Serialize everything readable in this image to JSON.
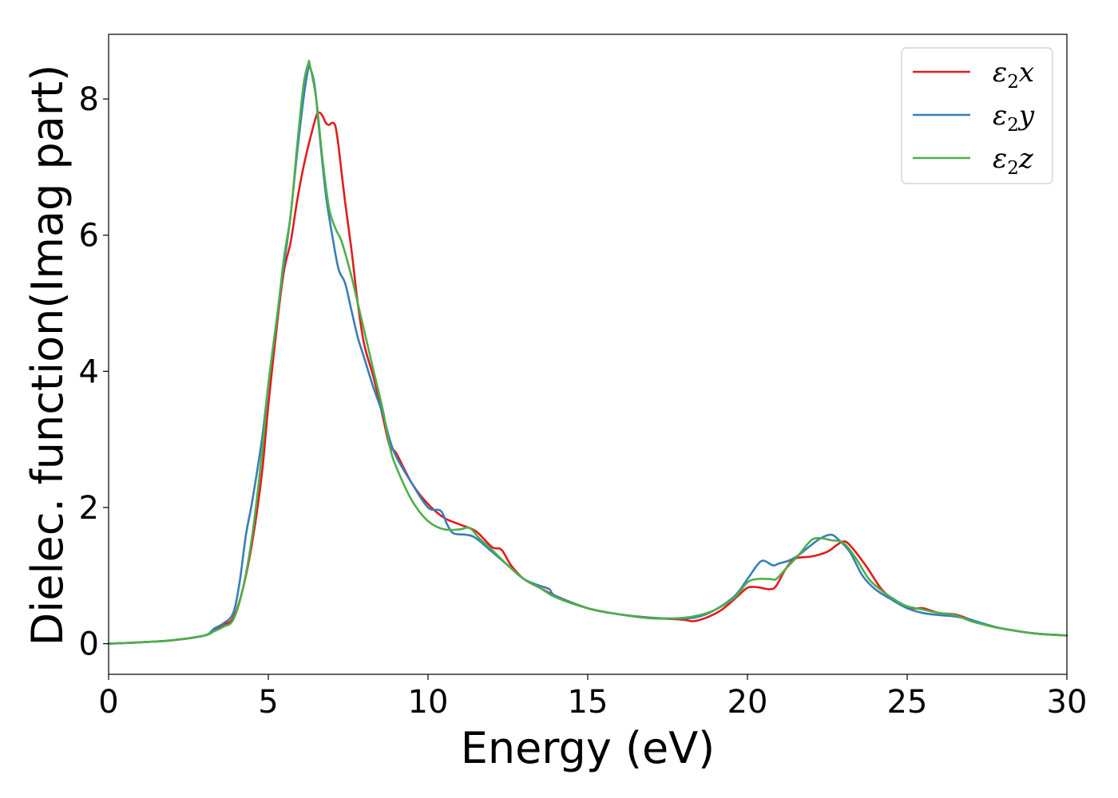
{
  "chart_data": {
    "type": "line",
    "title": "",
    "xlabel": "Energy (eV)",
    "ylabel": "Dielec. function(Imag part)",
    "xlim": [
      0,
      30
    ],
    "ylim": [
      -0.45,
      8.95
    ],
    "xticks": [
      0,
      5,
      10,
      15,
      20,
      25,
      30
    ],
    "yticks": [
      0,
      2,
      4,
      6,
      8
    ],
    "grid": false,
    "legend_position": "top-right",
    "series": [
      {
        "name": "ε2x",
        "legend_symbol": "ε",
        "legend_sub": "2",
        "legend_var": "x",
        "color": "#e41a1c",
        "points": [
          [
            0,
            0.0
          ],
          [
            1,
            0.02
          ],
          [
            2,
            0.05
          ],
          [
            3,
            0.12
          ],
          [
            3.3,
            0.2
          ],
          [
            3.6,
            0.28
          ],
          [
            3.9,
            0.38
          ],
          [
            4.2,
            0.8
          ],
          [
            4.5,
            1.5
          ],
          [
            4.8,
            2.5
          ],
          [
            5.0,
            3.5
          ],
          [
            5.3,
            4.8
          ],
          [
            5.5,
            5.5
          ],
          [
            5.7,
            5.9
          ],
          [
            5.9,
            6.5
          ],
          [
            6.1,
            7.0
          ],
          [
            6.3,
            7.4
          ],
          [
            6.5,
            7.75
          ],
          [
            6.6,
            7.8
          ],
          [
            6.7,
            7.75
          ],
          [
            6.8,
            7.65
          ],
          [
            6.9,
            7.62
          ],
          [
            7.0,
            7.65
          ],
          [
            7.1,
            7.6
          ],
          [
            7.2,
            7.3
          ],
          [
            7.4,
            6.5
          ],
          [
            7.6,
            5.8
          ],
          [
            7.8,
            5.0
          ],
          [
            8.0,
            4.4
          ],
          [
            8.3,
            3.9
          ],
          [
            8.6,
            3.3
          ],
          [
            8.8,
            2.9
          ],
          [
            9.0,
            2.8
          ],
          [
            9.5,
            2.35
          ],
          [
            10.0,
            2.05
          ],
          [
            10.5,
            1.85
          ],
          [
            11.0,
            1.75
          ],
          [
            11.5,
            1.65
          ],
          [
            12.0,
            1.42
          ],
          [
            12.3,
            1.38
          ],
          [
            12.6,
            1.15
          ],
          [
            13.0,
            0.95
          ],
          [
            13.5,
            0.82
          ],
          [
            14.0,
            0.7
          ],
          [
            15.0,
            0.52
          ],
          [
            16.0,
            0.43
          ],
          [
            17.0,
            0.38
          ],
          [
            18.0,
            0.35
          ],
          [
            18.3,
            0.33
          ],
          [
            18.7,
            0.38
          ],
          [
            19.2,
            0.5
          ],
          [
            19.7,
            0.7
          ],
          [
            20.0,
            0.82
          ],
          [
            20.3,
            0.83
          ],
          [
            20.7,
            0.8
          ],
          [
            20.9,
            0.85
          ],
          [
            21.2,
            1.1
          ],
          [
            21.5,
            1.25
          ],
          [
            22.0,
            1.28
          ],
          [
            22.5,
            1.35
          ],
          [
            22.8,
            1.45
          ],
          [
            23.0,
            1.5
          ],
          [
            23.2,
            1.45
          ],
          [
            23.7,
            1.15
          ],
          [
            24.2,
            0.8
          ],
          [
            24.7,
            0.6
          ],
          [
            25.2,
            0.52
          ],
          [
            25.5,
            0.52
          ],
          [
            26.0,
            0.45
          ],
          [
            26.5,
            0.43
          ],
          [
            27.0,
            0.35
          ],
          [
            27.5,
            0.27
          ],
          [
            28.0,
            0.22
          ],
          [
            29.0,
            0.15
          ],
          [
            30.0,
            0.12
          ]
        ]
      },
      {
        "name": "ε2y",
        "legend_symbol": "ε",
        "legend_sub": "2",
        "legend_var": "y",
        "color": "#377eb8",
        "points": [
          [
            0,
            0.0
          ],
          [
            1,
            0.02
          ],
          [
            2,
            0.05
          ],
          [
            3,
            0.12
          ],
          [
            3.3,
            0.22
          ],
          [
            3.6,
            0.3
          ],
          [
            3.9,
            0.45
          ],
          [
            4.1,
            0.9
          ],
          [
            4.3,
            1.6
          ],
          [
            4.5,
            2.1
          ],
          [
            4.8,
            3.0
          ],
          [
            5.0,
            3.8
          ],
          [
            5.3,
            4.9
          ],
          [
            5.5,
            5.6
          ],
          [
            5.7,
            6.3
          ],
          [
            5.9,
            7.2
          ],
          [
            6.1,
            8.0
          ],
          [
            6.25,
            8.45
          ],
          [
            6.3,
            8.47
          ],
          [
            6.45,
            8.2
          ],
          [
            6.6,
            7.5
          ],
          [
            6.8,
            6.6
          ],
          [
            7.0,
            6.0
          ],
          [
            7.2,
            5.5
          ],
          [
            7.4,
            5.3
          ],
          [
            7.6,
            4.9
          ],
          [
            7.8,
            4.5
          ],
          [
            8.0,
            4.2
          ],
          [
            8.3,
            3.75
          ],
          [
            8.6,
            3.35
          ],
          [
            8.8,
            3.0
          ],
          [
            9.0,
            2.75
          ],
          [
            9.5,
            2.35
          ],
          [
            10.0,
            2.0
          ],
          [
            10.4,
            1.95
          ],
          [
            10.6,
            1.75
          ],
          [
            10.8,
            1.62
          ],
          [
            11.2,
            1.6
          ],
          [
            11.5,
            1.55
          ],
          [
            12.0,
            1.35
          ],
          [
            12.5,
            1.15
          ],
          [
            13.0,
            0.95
          ],
          [
            13.5,
            0.85
          ],
          [
            13.8,
            0.8
          ],
          [
            14.0,
            0.7
          ],
          [
            15.0,
            0.52
          ],
          [
            16.0,
            0.43
          ],
          [
            17.0,
            0.38
          ],
          [
            18.0,
            0.37
          ],
          [
            18.5,
            0.4
          ],
          [
            19.0,
            0.5
          ],
          [
            19.6,
            0.7
          ],
          [
            20.0,
            0.95
          ],
          [
            20.3,
            1.15
          ],
          [
            20.5,
            1.22
          ],
          [
            20.8,
            1.15
          ],
          [
            21.0,
            1.18
          ],
          [
            21.3,
            1.22
          ],
          [
            21.6,
            1.3
          ],
          [
            22.0,
            1.45
          ],
          [
            22.3,
            1.55
          ],
          [
            22.6,
            1.6
          ],
          [
            22.8,
            1.55
          ],
          [
            23.2,
            1.35
          ],
          [
            23.6,
            1.0
          ],
          [
            24.0,
            0.8
          ],
          [
            24.5,
            0.65
          ],
          [
            25.0,
            0.52
          ],
          [
            25.5,
            0.45
          ],
          [
            26.0,
            0.42
          ],
          [
            26.5,
            0.4
          ],
          [
            27.0,
            0.35
          ],
          [
            27.5,
            0.28
          ],
          [
            28.0,
            0.22
          ],
          [
            29.0,
            0.15
          ],
          [
            30.0,
            0.12
          ]
        ]
      },
      {
        "name": "ε2z",
        "legend_symbol": "ε",
        "legend_sub": "2",
        "legend_var": "z",
        "color": "#4daf4a",
        "points": [
          [
            0,
            0.0
          ],
          [
            1,
            0.02
          ],
          [
            2,
            0.05
          ],
          [
            3,
            0.12
          ],
          [
            3.3,
            0.18
          ],
          [
            3.6,
            0.25
          ],
          [
            3.9,
            0.35
          ],
          [
            4.2,
            0.8
          ],
          [
            4.5,
            1.6
          ],
          [
            4.8,
            2.8
          ],
          [
            5.0,
            3.8
          ],
          [
            5.3,
            4.9
          ],
          [
            5.5,
            5.7
          ],
          [
            5.7,
            6.3
          ],
          [
            5.9,
            7.3
          ],
          [
            6.1,
            8.2
          ],
          [
            6.25,
            8.52
          ],
          [
            6.3,
            8.5
          ],
          [
            6.5,
            8.0
          ],
          [
            6.7,
            7.1
          ],
          [
            6.9,
            6.4
          ],
          [
            7.1,
            6.1
          ],
          [
            7.3,
            5.9
          ],
          [
            7.6,
            5.4
          ],
          [
            7.8,
            5.0
          ],
          [
            8.0,
            4.6
          ],
          [
            8.3,
            4.0
          ],
          [
            8.6,
            3.4
          ],
          [
            8.8,
            2.9
          ],
          [
            9.0,
            2.6
          ],
          [
            9.5,
            2.1
          ],
          [
            10.0,
            1.8
          ],
          [
            10.5,
            1.68
          ],
          [
            11.0,
            1.68
          ],
          [
            11.3,
            1.7
          ],
          [
            11.6,
            1.55
          ],
          [
            12.0,
            1.38
          ],
          [
            12.5,
            1.15
          ],
          [
            13.0,
            0.95
          ],
          [
            13.5,
            0.82
          ],
          [
            14.0,
            0.68
          ],
          [
            15.0,
            0.52
          ],
          [
            16.0,
            0.43
          ],
          [
            17.0,
            0.37
          ],
          [
            18.0,
            0.38
          ],
          [
            18.5,
            0.42
          ],
          [
            19.0,
            0.5
          ],
          [
            19.6,
            0.68
          ],
          [
            20.0,
            0.9
          ],
          [
            20.3,
            0.95
          ],
          [
            20.7,
            0.95
          ],
          [
            20.9,
            0.95
          ],
          [
            21.2,
            1.1
          ],
          [
            21.6,
            1.3
          ],
          [
            22.0,
            1.52
          ],
          [
            22.3,
            1.55
          ],
          [
            22.6,
            1.52
          ],
          [
            23.0,
            1.48
          ],
          [
            23.4,
            1.25
          ],
          [
            23.8,
            0.95
          ],
          [
            24.2,
            0.78
          ],
          [
            24.7,
            0.62
          ],
          [
            25.0,
            0.55
          ],
          [
            25.5,
            0.5
          ],
          [
            26.0,
            0.45
          ],
          [
            26.5,
            0.42
          ],
          [
            27.0,
            0.33
          ],
          [
            27.5,
            0.27
          ],
          [
            28.0,
            0.22
          ],
          [
            29.0,
            0.15
          ],
          [
            30.0,
            0.12
          ]
        ]
      }
    ]
  }
}
